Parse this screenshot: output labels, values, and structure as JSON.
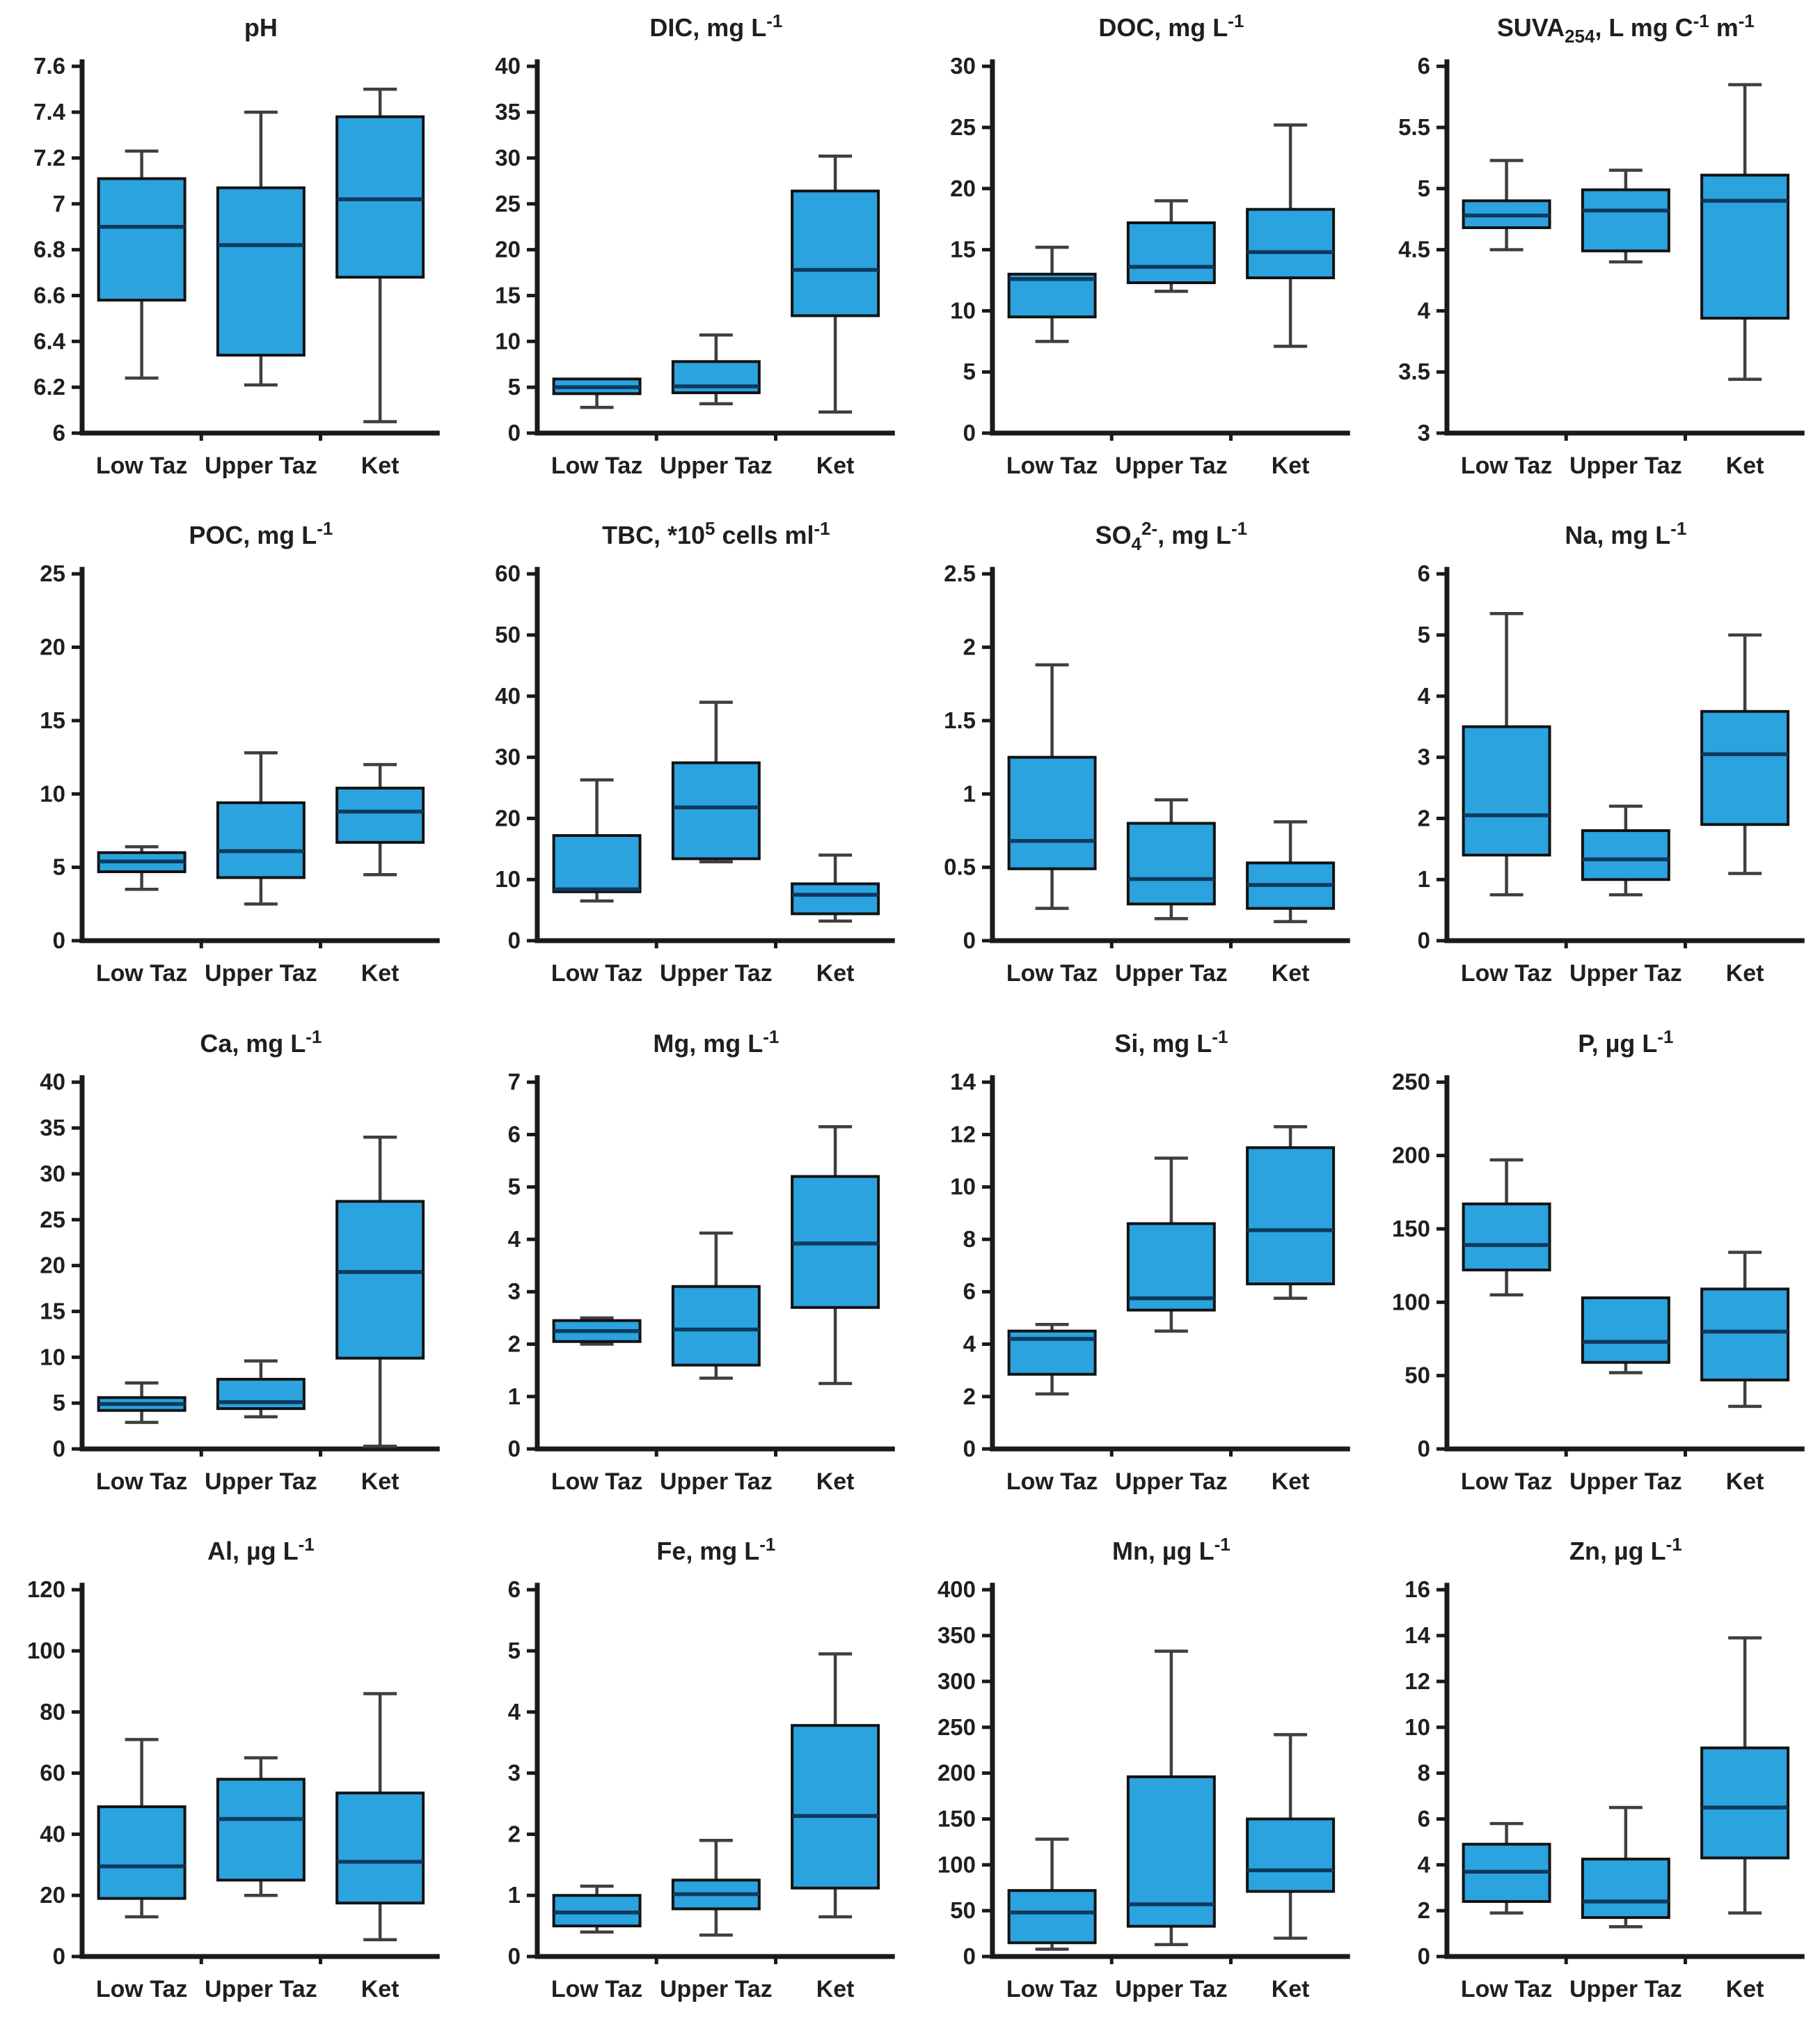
{
  "figure": {
    "sites": [
      "Low Taz",
      "Upper Taz",
      "Ket"
    ],
    "colors": {
      "box_fill": "#2AA3DF",
      "box_stroke": "#121212",
      "median": "#0D3A5C",
      "whisker": "#3F3F3F",
      "axis": "#1A1A1A",
      "text": "#1F1F1F"
    }
  },
  "chart_data": [
    {
      "type": "box",
      "title": "pH",
      "categories": [
        "Low Taz",
        "Upper Taz",
        "Ket"
      ],
      "ylim": [
        6,
        7.6
      ],
      "ytick_step": 0.2,
      "boxes": [
        {
          "category": "Low Taz",
          "low": 6.24,
          "q1": 6.58,
          "median": 6.9,
          "q3": 7.11,
          "high": 7.23
        },
        {
          "category": "Upper Taz",
          "low": 6.21,
          "q1": 6.34,
          "median": 6.82,
          "q3": 7.07,
          "high": 7.4
        },
        {
          "category": "Ket",
          "low": 6.05,
          "q1": 6.68,
          "median": 7.02,
          "q3": 7.38,
          "high": 7.5
        }
      ]
    },
    {
      "type": "box",
      "title": "DIC, mg L^-1^",
      "categories": [
        "Low Taz",
        "Upper Taz",
        "Ket"
      ],
      "ylim": [
        0,
        40
      ],
      "ytick_step": 5,
      "boxes": [
        {
          "category": "Low Taz",
          "low": 2.8,
          "q1": 4.3,
          "median": 5.0,
          "q3": 5.9,
          "high": 5.9
        },
        {
          "category": "Upper Taz",
          "low": 3.2,
          "q1": 4.4,
          "median": 5.1,
          "q3": 7.8,
          "high": 10.7
        },
        {
          "category": "Ket",
          "low": 2.3,
          "q1": 12.8,
          "median": 17.8,
          "q3": 26.4,
          "high": 30.2
        }
      ]
    },
    {
      "type": "box",
      "title": "DOC, mg L^-1^",
      "categories": [
        "Low Taz",
        "Upper Taz",
        "Ket"
      ],
      "ylim": [
        0,
        30
      ],
      "ytick_step": 5,
      "boxes": [
        {
          "category": "Low Taz",
          "low": 7.5,
          "q1": 9.5,
          "median": 12.6,
          "q3": 13.0,
          "high": 15.2
        },
        {
          "category": "Upper Taz",
          "low": 11.6,
          "q1": 12.3,
          "median": 13.6,
          "q3": 17.2,
          "high": 19.0
        },
        {
          "category": "Ket",
          "low": 7.1,
          "q1": 12.7,
          "median": 14.8,
          "q3": 18.3,
          "high": 25.2
        }
      ]
    },
    {
      "type": "box",
      "title": "SUVA_254_, L mg C^-1^ m^-1^",
      "categories": [
        "Low Taz",
        "Upper Taz",
        "Ket"
      ],
      "ylim": [
        3,
        6
      ],
      "ytick_step": 0.5,
      "boxes": [
        {
          "category": "Low Taz",
          "low": 4.5,
          "q1": 4.68,
          "median": 4.78,
          "q3": 4.9,
          "high": 5.23
        },
        {
          "category": "Upper Taz",
          "low": 4.4,
          "q1": 4.49,
          "median": 4.82,
          "q3": 4.99,
          "high": 5.15
        },
        {
          "category": "Ket",
          "low": 3.44,
          "q1": 3.94,
          "median": 4.9,
          "q3": 5.11,
          "high": 5.85
        }
      ]
    },
    {
      "type": "box",
      "title": "POC, mg L^-1^",
      "categories": [
        "Low Taz",
        "Upper Taz",
        "Ket"
      ],
      "ylim": [
        0,
        25
      ],
      "ytick_step": 5,
      "boxes": [
        {
          "category": "Low Taz",
          "low": 3.5,
          "q1": 4.7,
          "median": 5.4,
          "q3": 6.0,
          "high": 6.4
        },
        {
          "category": "Upper Taz",
          "low": 2.5,
          "q1": 4.3,
          "median": 6.1,
          "q3": 9.4,
          "high": 12.8
        },
        {
          "category": "Ket",
          "low": 4.5,
          "q1": 6.7,
          "median": 8.8,
          "q3": 10.4,
          "high": 12.0
        }
      ]
    },
    {
      "type": "box",
      "title": "TBC, *10^5^ cells ml^-1^",
      "categories": [
        "Low Taz",
        "Upper Taz",
        "Ket"
      ],
      "ylim": [
        0,
        60
      ],
      "ytick_step": 10,
      "boxes": [
        {
          "category": "Low Taz",
          "low": 6.5,
          "q1": 8.0,
          "median": 8.4,
          "q3": 17.2,
          "high": 26.3
        },
        {
          "category": "Upper Taz",
          "low": 12.9,
          "q1": 13.4,
          "median": 21.8,
          "q3": 29.1,
          "high": 39.0
        },
        {
          "category": "Ket",
          "low": 3.2,
          "q1": 4.4,
          "median": 7.5,
          "q3": 9.3,
          "high": 14.0
        }
      ]
    },
    {
      "type": "box",
      "title": "SO_4_^2-^, mg L^-1^",
      "categories": [
        "Low Taz",
        "Upper Taz",
        "Ket"
      ],
      "ylim": [
        0,
        2.5
      ],
      "ytick_step": 0.5,
      "boxes": [
        {
          "category": "Low Taz",
          "low": 0.22,
          "q1": 0.49,
          "median": 0.68,
          "q3": 1.25,
          "high": 1.88
        },
        {
          "category": "Upper Taz",
          "low": 0.15,
          "q1": 0.25,
          "median": 0.42,
          "q3": 0.8,
          "high": 0.96
        },
        {
          "category": "Ket",
          "low": 0.13,
          "q1": 0.22,
          "median": 0.38,
          "q3": 0.53,
          "high": 0.81
        }
      ]
    },
    {
      "type": "box",
      "title": "Na, mg L^-1^",
      "categories": [
        "Low Taz",
        "Upper Taz",
        "Ket"
      ],
      "ylim": [
        0,
        6
      ],
      "ytick_step": 1,
      "boxes": [
        {
          "category": "Low Taz",
          "low": 0.75,
          "q1": 1.4,
          "median": 2.05,
          "q3": 3.5,
          "high": 5.35
        },
        {
          "category": "Upper Taz",
          "low": 0.75,
          "q1": 1.0,
          "median": 1.33,
          "q3": 1.8,
          "high": 2.2
        },
        {
          "category": "Ket",
          "low": 1.1,
          "q1": 1.9,
          "median": 3.05,
          "q3": 3.75,
          "high": 5.0
        }
      ]
    },
    {
      "type": "box",
      "title": "Ca, mg L^-1^",
      "categories": [
        "Low Taz",
        "Upper Taz",
        "Ket"
      ],
      "ylim": [
        0,
        40
      ],
      "ytick_step": 5,
      "boxes": [
        {
          "category": "Low Taz",
          "low": 2.9,
          "q1": 4.2,
          "median": 4.9,
          "q3": 5.6,
          "high": 7.2
        },
        {
          "category": "Upper Taz",
          "low": 3.5,
          "q1": 4.4,
          "median": 5.1,
          "q3": 7.6,
          "high": 9.6
        },
        {
          "category": "Ket",
          "low": 0.3,
          "q1": 9.9,
          "median": 19.3,
          "q3": 27.0,
          "high": 34.0
        }
      ]
    },
    {
      "type": "box",
      "title": "Mg, mg L^-1^",
      "categories": [
        "Low Taz",
        "Upper Taz",
        "Ket"
      ],
      "ylim": [
        0,
        7
      ],
      "ytick_step": 1,
      "boxes": [
        {
          "category": "Low Taz",
          "low": 2.0,
          "q1": 2.05,
          "median": 2.25,
          "q3": 2.45,
          "high": 2.5
        },
        {
          "category": "Upper Taz",
          "low": 1.35,
          "q1": 1.6,
          "median": 2.28,
          "q3": 3.1,
          "high": 4.12
        },
        {
          "category": "Ket",
          "low": 1.25,
          "q1": 2.7,
          "median": 3.92,
          "q3": 5.2,
          "high": 6.15
        }
      ]
    },
    {
      "type": "box",
      "title": "Si, mg L^-1^",
      "categories": [
        "Low Taz",
        "Upper Taz",
        "Ket"
      ],
      "ylim": [
        0,
        14
      ],
      "ytick_step": 2,
      "boxes": [
        {
          "category": "Low Taz",
          "low": 2.1,
          "q1": 2.85,
          "median": 4.2,
          "q3": 4.5,
          "high": 4.75
        },
        {
          "category": "Upper Taz",
          "low": 4.5,
          "q1": 5.3,
          "median": 5.75,
          "q3": 8.6,
          "high": 11.1
        },
        {
          "category": "Ket",
          "low": 5.75,
          "q1": 6.3,
          "median": 8.35,
          "q3": 11.5,
          "high": 12.3
        }
      ]
    },
    {
      "type": "box",
      "title": "P, µg L^-1^",
      "categories": [
        "Low Taz",
        "Upper Taz",
        "Ket"
      ],
      "ylim": [
        0,
        250
      ],
      "ytick_step": 50,
      "boxes": [
        {
          "category": "Low Taz",
          "low": 105,
          "q1": 122,
          "median": 139,
          "q3": 167,
          "high": 197
        },
        {
          "category": "Upper Taz",
          "low": 52,
          "q1": 59,
          "median": 73,
          "q3": 103,
          "high": 103
        },
        {
          "category": "Ket",
          "low": 29,
          "q1": 47,
          "median": 80,
          "q3": 109,
          "high": 134
        }
      ]
    },
    {
      "type": "box",
      "title": "Al, µg L^-1^",
      "categories": [
        "Low Taz",
        "Upper Taz",
        "Ket"
      ],
      "ylim": [
        0,
        120
      ],
      "ytick_step": 20,
      "boxes": [
        {
          "category": "Low Taz",
          "low": 13,
          "q1": 19,
          "median": 29.5,
          "q3": 49,
          "high": 71
        },
        {
          "category": "Upper Taz",
          "low": 20,
          "q1": 25,
          "median": 45,
          "q3": 58,
          "high": 65
        },
        {
          "category": "Ket",
          "low": 5.5,
          "q1": 17.5,
          "median": 31,
          "q3": 53.5,
          "high": 86
        }
      ]
    },
    {
      "type": "box",
      "title": "Fe, mg L^-1^",
      "categories": [
        "Low Taz",
        "Upper Taz",
        "Ket"
      ],
      "ylim": [
        0,
        6
      ],
      "ytick_step": 1,
      "boxes": [
        {
          "category": "Low Taz",
          "low": 0.4,
          "q1": 0.5,
          "median": 0.72,
          "q3": 1.0,
          "high": 1.15
        },
        {
          "category": "Upper Taz",
          "low": 0.35,
          "q1": 0.78,
          "median": 1.02,
          "q3": 1.25,
          "high": 1.9
        },
        {
          "category": "Ket",
          "low": 0.65,
          "q1": 1.12,
          "median": 2.3,
          "q3": 3.78,
          "high": 4.95
        }
      ]
    },
    {
      "type": "box",
      "title": "Mn, µg L^-1^",
      "categories": [
        "Low Taz",
        "Upper Taz",
        "Ket"
      ],
      "ylim": [
        0,
        400
      ],
      "ytick_step": 50,
      "boxes": [
        {
          "category": "Low Taz",
          "low": 8,
          "q1": 15,
          "median": 48,
          "q3": 72,
          "high": 128
        },
        {
          "category": "Upper Taz",
          "low": 13,
          "q1": 33,
          "median": 57,
          "q3": 196,
          "high": 333
        },
        {
          "category": "Ket",
          "low": 20,
          "q1": 71,
          "median": 94,
          "q3": 150,
          "high": 242
        }
      ]
    },
    {
      "type": "box",
      "title": "Zn, µg L^-1^",
      "categories": [
        "Low Taz",
        "Upper Taz",
        "Ket"
      ],
      "ylim": [
        0,
        16
      ],
      "ytick_step": 2,
      "boxes": [
        {
          "category": "Low Taz",
          "low": 1.9,
          "q1": 2.4,
          "median": 3.7,
          "q3": 4.9,
          "high": 5.8
        },
        {
          "category": "Upper Taz",
          "low": 1.3,
          "q1": 1.7,
          "median": 2.4,
          "q3": 4.25,
          "high": 6.5
        },
        {
          "category": "Ket",
          "low": 1.9,
          "q1": 4.3,
          "median": 6.5,
          "q3": 9.1,
          "high": 13.9
        }
      ]
    }
  ]
}
